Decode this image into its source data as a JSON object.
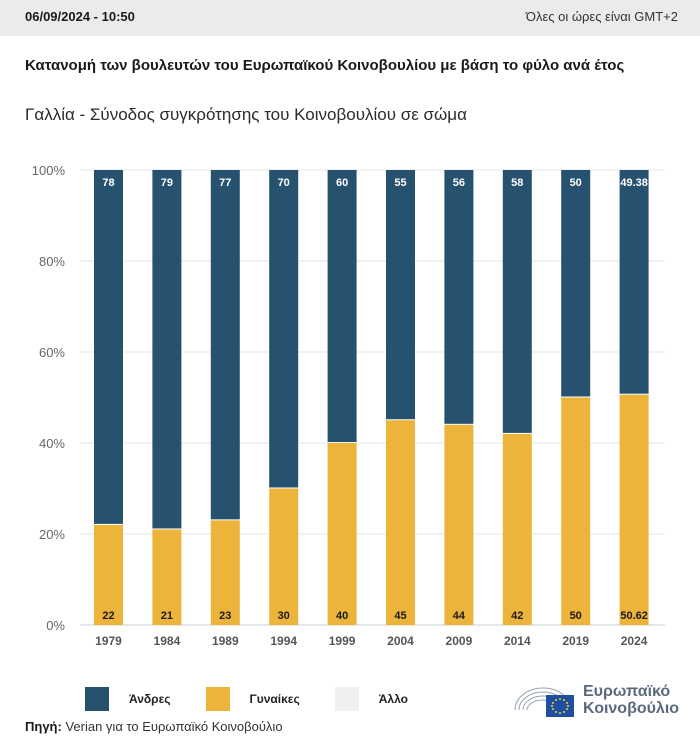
{
  "header": {
    "datetime": "06/09/2024 - 10:50",
    "timezone_note": "Όλες οι ώρες είναι GMT+2"
  },
  "chart_data": {
    "type": "bar",
    "stacked": true,
    "title": "Κατανομή των βουλευτών του Ευρωπαϊκού Κοινοβουλίου με βάση το φύλο ανά έτος",
    "subtitle": "Γαλλία - Σύνοδος συγκρότησης του Κοινοβουλίου σε σώμα",
    "categories": [
      "1979",
      "1984",
      "1989",
      "1994",
      "1999",
      "2004",
      "2009",
      "2014",
      "2019",
      "2024"
    ],
    "series": [
      {
        "name": "Γυναίκες",
        "color": "#ecb43a",
        "values": [
          22,
          21,
          23,
          30,
          40,
          45,
          44,
          42,
          50,
          50.62
        ],
        "labels": [
          "22",
          "21",
          "23",
          "30",
          "40",
          "45",
          "44",
          "42",
          "50",
          "50.62"
        ]
      },
      {
        "name": "Άνδρες",
        "color": "#26526f",
        "values": [
          78,
          79,
          77,
          70,
          60,
          55,
          56,
          58,
          50,
          49.38
        ],
        "labels": [
          "78",
          "79",
          "77",
          "70",
          "60",
          "55",
          "56",
          "58",
          "50",
          "49.38"
        ]
      },
      {
        "name": "Άλλο",
        "color": "#eef0f2",
        "values": [
          0,
          0,
          0,
          0,
          0,
          0,
          0,
          0,
          0,
          0
        ]
      }
    ],
    "yticks": [
      "0%",
      "20%",
      "40%",
      "60%",
      "80%",
      "100%"
    ],
    "ytick_values": [
      0,
      20,
      40,
      60,
      80,
      100
    ],
    "ylim": [
      0,
      100
    ],
    "xlabel": "",
    "ylabel": "",
    "grid": true,
    "legend_position": "bottom-left"
  },
  "legend": [
    {
      "label": "Άνδρες",
      "color": "#26526f"
    },
    {
      "label": "Γυναίκες",
      "color": "#ecb43a"
    },
    {
      "label": "Άλλο",
      "color": "#eef0f2"
    }
  ],
  "source": {
    "prefix": "Πηγή:",
    "text": " Verian για το Ευρωπαϊκό Κοινοβούλιο"
  },
  "logo": {
    "line1": "Ευρωπαϊκό",
    "line2": "Κοινοβούλιο"
  }
}
